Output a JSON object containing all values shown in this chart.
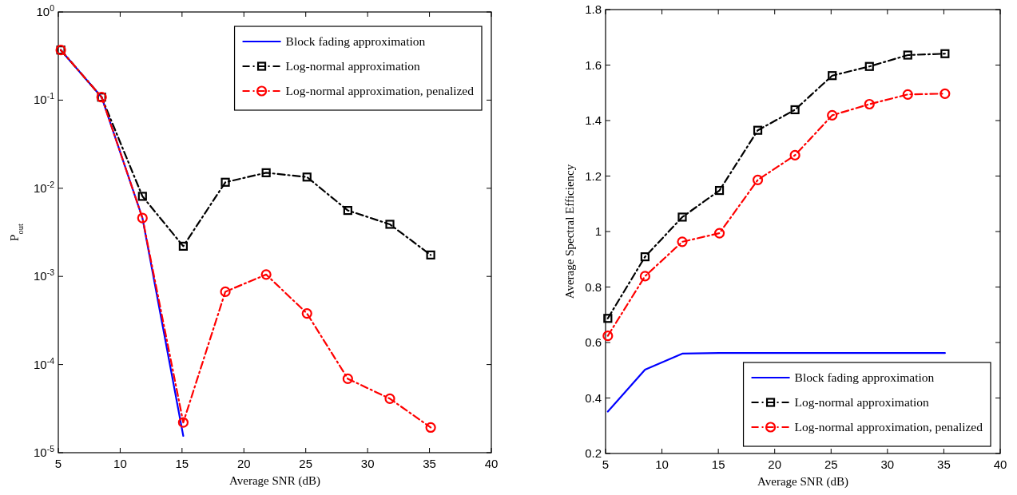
{
  "chart_data": [
    {
      "type": "line",
      "xlabel": "Average SNR (dB)",
      "ylabel": "P$_{out}$",
      "log": "y",
      "x": [
        5.2,
        8.5,
        11.8,
        15.1,
        18.5,
        21.8,
        25.1,
        28.4,
        31.8,
        35.1
      ],
      "xlim": [
        5,
        40
      ],
      "xticks": [
        5,
        10,
        15,
        20,
        25,
        30,
        35,
        40
      ],
      "ylim": [
        1e-05,
        1
      ],
      "yticks": [
        {
          "value": 1e-05,
          "label": "10$^{-5}$"
        },
        {
          "value": 0.0001,
          "label": "10$^{-4}$"
        },
        {
          "value": 0.001,
          "label": "10$^{-3}$"
        },
        {
          "value": 0.01,
          "label": "10$^{-2}$"
        },
        {
          "value": 0.1,
          "label": "10$^{-1}$"
        },
        {
          "value": 1,
          "label": "10$^{0}$"
        }
      ],
      "grid": false,
      "legend": "top right",
      "series": [
        {
          "name": "Block fading approximation",
          "color": "#0000ff",
          "marker": "none",
          "line_style": "solid",
          "values": [
            0.37,
            0.108,
            0.0046,
            1.55e-05,
            null,
            null,
            null,
            null,
            null,
            null
          ]
        },
        {
          "name": "Log-normal approximation",
          "color": "#000000",
          "marker": "square",
          "line_style": "dashed",
          "values": [
            0.37,
            0.108,
            0.0081,
            0.0022,
            0.0117,
            0.015,
            0.0134,
            0.0056,
            0.0039,
            0.00175
          ]
        },
        {
          "name": "Log-normal approximation, penalized",
          "color": "#ff0000",
          "marker": "circle",
          "line_style": "dashed",
          "values": [
            0.37,
            0.108,
            0.0046,
            2.2e-05,
            0.00067,
            0.00105,
            0.00038,
            6.9e-05,
            4.1e-05,
            1.93e-05
          ]
        }
      ]
    },
    {
      "type": "line",
      "xlabel": "Average SNR (dB)",
      "ylabel": "Average Spectral Efficiency",
      "x": [
        5.2,
        8.5,
        11.8,
        15.1,
        18.5,
        21.8,
        25.1,
        28.4,
        31.8,
        35.1
      ],
      "xlim": [
        5,
        40
      ],
      "xticks": [
        5,
        10,
        15,
        20,
        25,
        30,
        35,
        40
      ],
      "ylim": [
        0.2,
        1.8
      ],
      "yticks": [
        {
          "value": 0.2,
          "label": "0.2"
        },
        {
          "value": 0.4,
          "label": "0.4"
        },
        {
          "value": 0.6,
          "label": "0.6"
        },
        {
          "value": 0.8,
          "label": "0.8"
        },
        {
          "value": 1,
          "label": "1"
        },
        {
          "value": 1.2,
          "label": "1.2"
        },
        {
          "value": 1.4,
          "label": "1.4"
        },
        {
          "value": 1.6,
          "label": "1.6"
        },
        {
          "value": 1.8,
          "label": "1.8"
        }
      ],
      "grid": false,
      "legend": "bottom right",
      "series": [
        {
          "name": "Block fading approximation",
          "color": "#0000ff",
          "marker": "none",
          "line_style": "solid",
          "values": [
            0.351,
            0.502,
            0.56,
            0.562,
            0.562,
            0.562,
            0.562,
            0.562,
            0.562,
            0.562
          ]
        },
        {
          "name": "Log-normal approximation",
          "color": "#000000",
          "marker": "square",
          "line_style": "dashed",
          "values": [
            0.687,
            0.909,
            1.052,
            1.148,
            1.365,
            1.439,
            1.562,
            1.595,
            1.636,
            1.641
          ]
        },
        {
          "name": "Log-normal approximation, penalized",
          "color": "#ff0000",
          "marker": "circle",
          "line_style": "dashed",
          "values": [
            0.624,
            0.839,
            0.963,
            0.994,
            1.186,
            1.275,
            1.419,
            1.459,
            1.494,
            1.497
          ]
        }
      ]
    }
  ]
}
